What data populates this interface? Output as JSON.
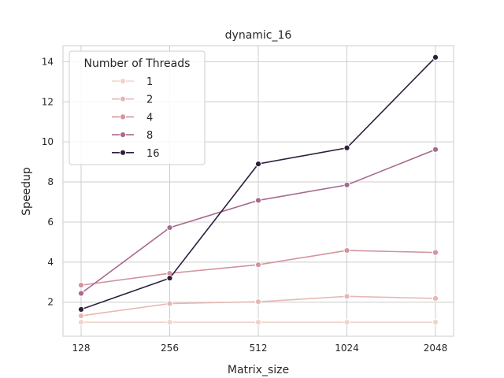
{
  "chart_data": {
    "type": "line",
    "title": "dynamic_16",
    "xlabel": "Matrix_size",
    "ylabel": "Speedup",
    "categories": [
      "128",
      "256",
      "512",
      "1024",
      "2048"
    ],
    "ylim": [
      0.3,
      14.8
    ],
    "yticks": [
      2,
      4,
      6,
      8,
      10,
      12,
      14
    ],
    "grid": true,
    "legend": {
      "title": "Number of Threads",
      "position": "top-left"
    },
    "series": [
      {
        "name": "1",
        "color": "#f0d4ca",
        "values": [
          1.0,
          1.0,
          1.0,
          1.0,
          1.0
        ]
      },
      {
        "name": "2",
        "color": "#e6b8b3",
        "values": [
          1.32,
          1.93,
          2.02,
          2.29,
          2.19
        ]
      },
      {
        "name": "4",
        "color": "#d2949e",
        "values": [
          2.85,
          3.44,
          3.87,
          4.58,
          4.48
        ]
      },
      {
        "name": "8",
        "color": "#a8698f",
        "values": [
          2.44,
          5.72,
          7.08,
          7.85,
          9.62
        ]
      },
      {
        "name": "16",
        "color": "#2d1e3e",
        "values": [
          1.64,
          3.2,
          8.9,
          9.7,
          14.22
        ]
      }
    ]
  }
}
